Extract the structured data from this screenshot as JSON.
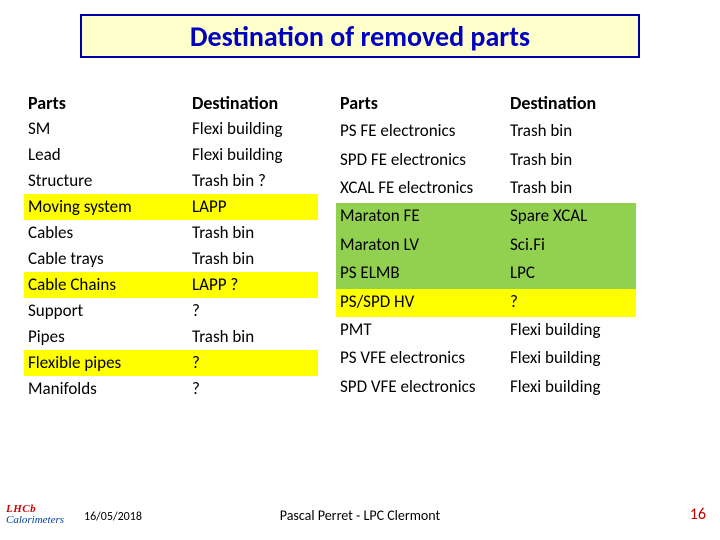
{
  "title": "Destination of removed parts",
  "headers": {
    "parts": "Parts",
    "dest": "Destination"
  },
  "colors": {
    "yellow": "#ffff00",
    "green": "#92d050",
    "title_bg": "#ffffcc",
    "title_border": "#0000a0",
    "title_text": "#0000c0",
    "page_num": "#c00000"
  },
  "left_rows": [
    {
      "parts": "SM",
      "dest": "Flexi building",
      "hl": null
    },
    {
      "parts": "Lead",
      "dest": "Flexi building",
      "hl": null
    },
    {
      "parts": "Structure",
      "dest": "Trash bin ?",
      "hl": null
    },
    {
      "parts": "Moving system",
      "dest": "LAPP",
      "hl": "yellow"
    },
    {
      "parts": "Cables",
      "dest": "Trash bin",
      "hl": null
    },
    {
      "parts": "Cable trays",
      "dest": "Trash bin",
      "hl": null
    },
    {
      "parts": "Cable Chains",
      "dest": "LAPP ?",
      "hl": "yellow"
    },
    {
      "parts": "Support",
      "dest": "?",
      "hl": null
    },
    {
      "parts": "Pipes",
      "dest": "Trash bin",
      "hl": null
    },
    {
      "parts": "Flexible pipes",
      "dest": "?",
      "hl": "yellow"
    },
    {
      "parts": "Manifolds",
      "dest": "?",
      "hl": null
    }
  ],
  "right_rows": [
    {
      "parts": "PS FE electronics",
      "dest": "Trash bin",
      "hl": null
    },
    {
      "parts": "SPD FE electronics",
      "dest": "Trash bin",
      "hl": null
    },
    {
      "parts": "XCAL FE electronics",
      "dest": "Trash bin",
      "hl": null
    },
    {
      "parts": "Maraton FE",
      "dest": "Spare XCAL",
      "hl": "green"
    },
    {
      "parts": "Maraton LV",
      "dest": "Sci.Fi",
      "hl": "green"
    },
    {
      "parts": "PS ELMB",
      "dest": "LPC",
      "hl": "green"
    },
    {
      "parts": "PS/SPD HV",
      "dest": "?",
      "hl": "yellow"
    },
    {
      "parts": "PMT",
      "dest": "Flexi building",
      "hl": null
    },
    {
      "parts": "PS VFE electronics",
      "dest": "Flexi building",
      "hl": null
    },
    {
      "parts": "SPD VFE electronics",
      "dest": "Flexi building",
      "hl": null
    }
  ],
  "footer": {
    "date": "16/05/2018",
    "center": "Pascal Perret  - LPC Clermont",
    "page": "16",
    "logo_top": "LHCb",
    "logo_bottom": "Calorimeters",
    "logo_back": "B"
  }
}
